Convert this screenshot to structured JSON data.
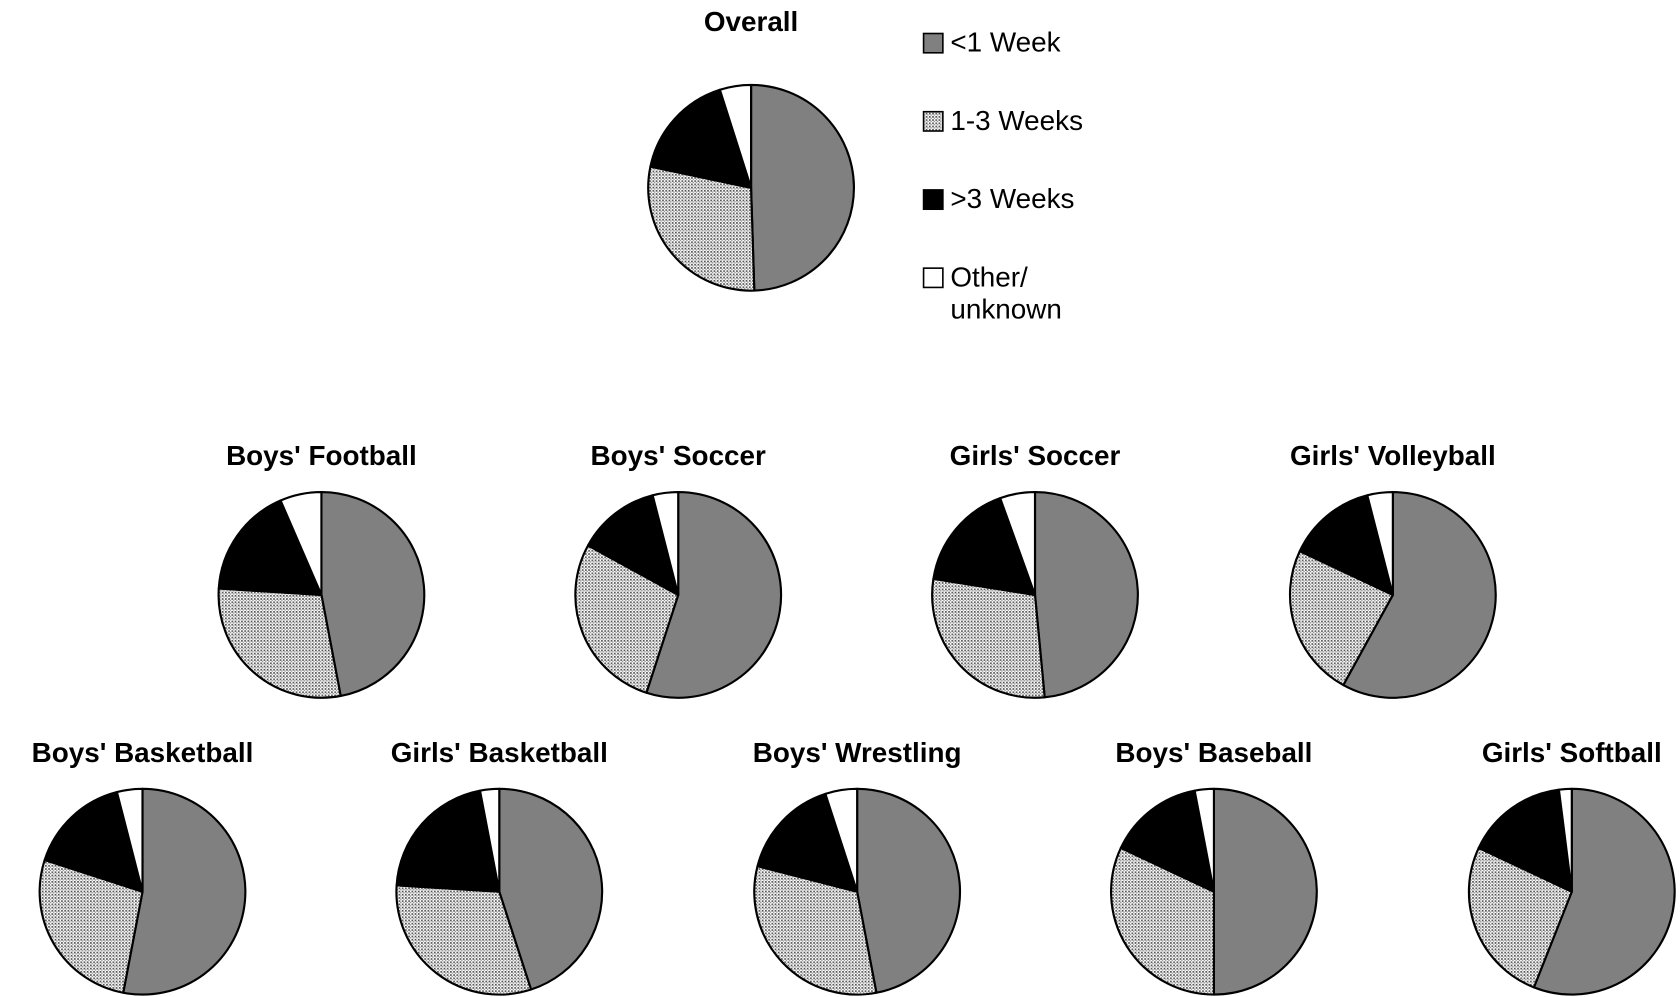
{
  "chart_data": [
    {
      "type": "pie",
      "title": "Overall",
      "categories": [
        "<1 Week",
        "1-3 Weeks",
        ">3 Weeks",
        "Other/ unknown"
      ],
      "values": [
        49.5,
        28.8,
        16.8,
        4.9
      ],
      "colors": [
        "#808080",
        "#b8b8b8",
        "#000000",
        "#ffffff"
      ],
      "patterns": [
        "solid",
        "dots",
        "solid",
        "solid"
      ],
      "legend": "right"
    },
    {
      "type": "pie",
      "title": "Boys' Football",
      "categories": [
        "<1 Week",
        "1-3 Weeks",
        ">3 Weeks",
        "Other/ unknown"
      ],
      "values": [
        47,
        29,
        17.5,
        6.5
      ],
      "colors": [
        "#808080",
        "#b8b8b8",
        "#000000",
        "#ffffff"
      ],
      "patterns": [
        "solid",
        "dots",
        "solid",
        "solid"
      ]
    },
    {
      "type": "pie",
      "title": "Boys' Soccer",
      "categories": [
        "<1 Week",
        "1-3 Weeks",
        ">3 Weeks",
        "Other/ unknown"
      ],
      "values": [
        55,
        28,
        13,
        4
      ],
      "colors": [
        "#808080",
        "#b8b8b8",
        "#000000",
        "#ffffff"
      ],
      "patterns": [
        "solid",
        "dots",
        "solid",
        "solid"
      ]
    },
    {
      "type": "pie",
      "title": "Girls' Soccer",
      "categories": [
        "<1 Week",
        "1-3 Weeks",
        ">3 Weeks",
        "Other/ unknown"
      ],
      "values": [
        48.5,
        29,
        17,
        5.5
      ],
      "colors": [
        "#808080",
        "#b8b8b8",
        "#000000",
        "#ffffff"
      ],
      "patterns": [
        "solid",
        "dots",
        "solid",
        "solid"
      ]
    },
    {
      "type": "pie",
      "title": "Girls' Volleyball",
      "categories": [
        "<1 Week",
        "1-3 Weeks",
        ">3 Weeks",
        "Other/ unknown"
      ],
      "values": [
        58,
        24,
        14,
        4
      ],
      "colors": [
        "#808080",
        "#b8b8b8",
        "#000000",
        "#ffffff"
      ],
      "patterns": [
        "solid",
        "dots",
        "solid",
        "solid"
      ]
    },
    {
      "type": "pie",
      "title": "Boys' Basketball",
      "categories": [
        "<1 Week",
        "1-3 Weeks",
        ">3 Weeks",
        "Other/ unknown"
      ],
      "values": [
        53,
        27,
        16,
        4
      ],
      "colors": [
        "#808080",
        "#b8b8b8",
        "#000000",
        "#ffffff"
      ],
      "patterns": [
        "solid",
        "dots",
        "solid",
        "solid"
      ]
    },
    {
      "type": "pie",
      "title": "Girls' Basketball",
      "categories": [
        "<1 Week",
        "1-3 Weeks",
        ">3 Weeks",
        "Other/ unknown"
      ],
      "values": [
        45,
        31,
        21,
        3
      ],
      "colors": [
        "#808080",
        "#b8b8b8",
        "#000000",
        "#ffffff"
      ],
      "patterns": [
        "solid",
        "dots",
        "solid",
        "solid"
      ]
    },
    {
      "type": "pie",
      "title": "Boys' Wrestling",
      "categories": [
        "<1 Week",
        "1-3 Weeks",
        ">3 Weeks",
        "Other/ unknown"
      ],
      "values": [
        47,
        32,
        16,
        5
      ],
      "colors": [
        "#808080",
        "#b8b8b8",
        "#000000",
        "#ffffff"
      ],
      "patterns": [
        "solid",
        "dots",
        "solid",
        "solid"
      ]
    },
    {
      "type": "pie",
      "title": "Boys' Baseball",
      "categories": [
        "<1 Week",
        "1-3 Weeks",
        ">3 Weeks",
        "Other/ unknown"
      ],
      "values": [
        50,
        32,
        15,
        3
      ],
      "colors": [
        "#808080",
        "#b8b8b8",
        "#000000",
        "#ffffff"
      ],
      "patterns": [
        "solid",
        "dots",
        "solid",
        "solid"
      ]
    },
    {
      "type": "pie",
      "title": "Girls' Softball",
      "categories": [
        "<1 Week",
        "1-3 Weeks",
        ">3 Weeks",
        "Other/ unknown"
      ],
      "values": [
        56,
        26,
        16,
        2
      ],
      "colors": [
        "#808080",
        "#b8b8b8",
        "#000000",
        "#ffffff"
      ],
      "patterns": [
        "solid",
        "dots",
        "solid",
        "solid"
      ]
    }
  ]
}
